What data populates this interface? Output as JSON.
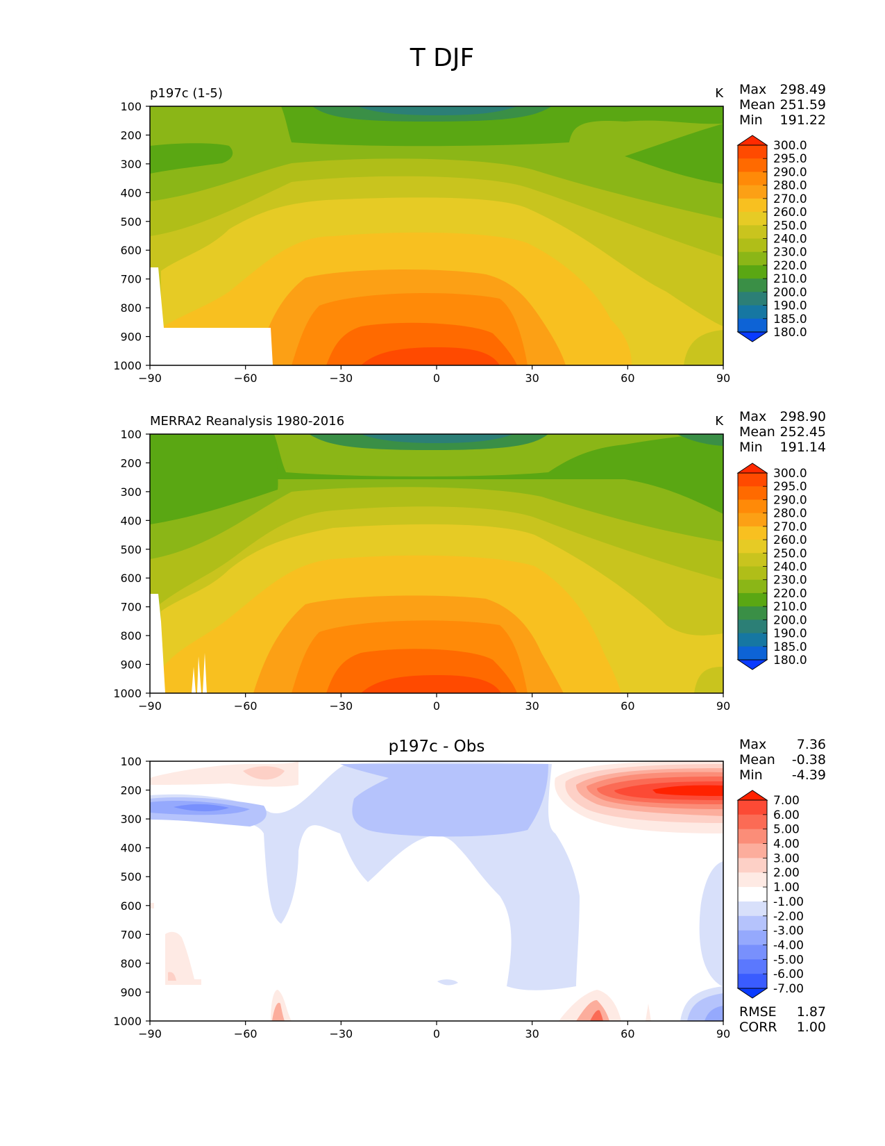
{
  "figure": {
    "title": "T DJF"
  },
  "chart_data": [
    {
      "type": "heatmap",
      "title": "p197c (1-5)",
      "units": "K",
      "x_ticks": [
        -90,
        -60,
        -30,
        0,
        30,
        60,
        90
      ],
      "y_ticks": [
        100,
        200,
        300,
        400,
        500,
        600,
        700,
        800,
        900,
        1000
      ],
      "xlim": [
        -90,
        90
      ],
      "ylim": [
        1000,
        100
      ],
      "stats": [
        {
          "label": "Max",
          "value": "298.49"
        },
        {
          "label": "Mean",
          "value": "251.59"
        },
        {
          "label": "Min",
          "value": "191.22"
        }
      ],
      "colorbar": {
        "levels": [
          "300.0",
          "295.0",
          "290.0",
          "280.0",
          "270.0",
          "260.0",
          "250.0",
          "240.0",
          "230.0",
          "220.0",
          "210.0",
          "200.0",
          "190.0",
          "185.0",
          "180.0"
        ],
        "colors": [
          "#ff2a00",
          "#ff4a00",
          "#ff6a00",
          "#ff8a08",
          "#fca015",
          "#f8c020",
          "#e6cb25",
          "#c9c41e",
          "#b0be18",
          "#8bb617",
          "#5aa713",
          "#3a8f46",
          "#2c7f76",
          "#1677a2",
          "#0d63d6",
          "#0a3bff"
        ]
      },
      "note_nodata": "white masked region over Antarctica"
    },
    {
      "type": "heatmap",
      "title": "MERRA2 Reanalysis 1980-2016",
      "units": "K",
      "x_ticks": [
        -90,
        -60,
        -30,
        0,
        30,
        60,
        90
      ],
      "y_ticks": [
        100,
        200,
        300,
        400,
        500,
        600,
        700,
        800,
        900,
        1000
      ],
      "xlim": [
        -90,
        90
      ],
      "ylim": [
        1000,
        100
      ],
      "stats": [
        {
          "label": "Max",
          "value": "298.90"
        },
        {
          "label": "Mean",
          "value": "252.45"
        },
        {
          "label": "Min",
          "value": "191.14"
        }
      ],
      "colorbar": {
        "levels": [
          "300.0",
          "295.0",
          "290.0",
          "280.0",
          "270.0",
          "260.0",
          "250.0",
          "240.0",
          "230.0",
          "220.0",
          "210.0",
          "200.0",
          "190.0",
          "185.0",
          "180.0"
        ],
        "colors": [
          "#ff2a00",
          "#ff4a00",
          "#ff6a00",
          "#ff8a08",
          "#fca015",
          "#f8c020",
          "#e6cb25",
          "#c9c41e",
          "#b0be18",
          "#8bb617",
          "#5aa713",
          "#3a8f46",
          "#2c7f76",
          "#1677a2",
          "#0d63d6",
          "#0a3bff"
        ]
      }
    },
    {
      "type": "heatmap",
      "title": "p197c - Obs",
      "units": "",
      "x_ticks": [
        -90,
        -60,
        -30,
        0,
        30,
        60,
        90
      ],
      "y_ticks": [
        100,
        200,
        300,
        400,
        500,
        600,
        700,
        800,
        900,
        1000
      ],
      "xlim": [
        -90,
        90
      ],
      "ylim": [
        1000,
        100
      ],
      "stats": [
        {
          "label": "Max",
          "value": "7.36"
        },
        {
          "label": "Mean",
          "value": "-0.38"
        },
        {
          "label": "Min",
          "value": "-4.39"
        }
      ],
      "colorbar": {
        "levels": [
          "7.00",
          "6.00",
          "5.00",
          "4.00",
          "3.00",
          "2.00",
          "1.00",
          "-1.00",
          "-2.00",
          "-3.00",
          "-4.00",
          "-5.00",
          "-6.00",
          "-7.00"
        ],
        "colors": [
          "#ff2200",
          "#fc4a35",
          "#fb6b55",
          "#fb8d78",
          "#fcad9c",
          "#fdd0c6",
          "#feeae4",
          "#ffffff",
          "#d8e0fa",
          "#b5c3fc",
          "#95a9fd",
          "#7890fd",
          "#5b78fe",
          "#3a5cff",
          "#0a3bff"
        ]
      },
      "error_stats": [
        {
          "label": "RMSE",
          "value": "1.87"
        },
        {
          "label": "CORR",
          "value": "1.00"
        }
      ]
    }
  ]
}
